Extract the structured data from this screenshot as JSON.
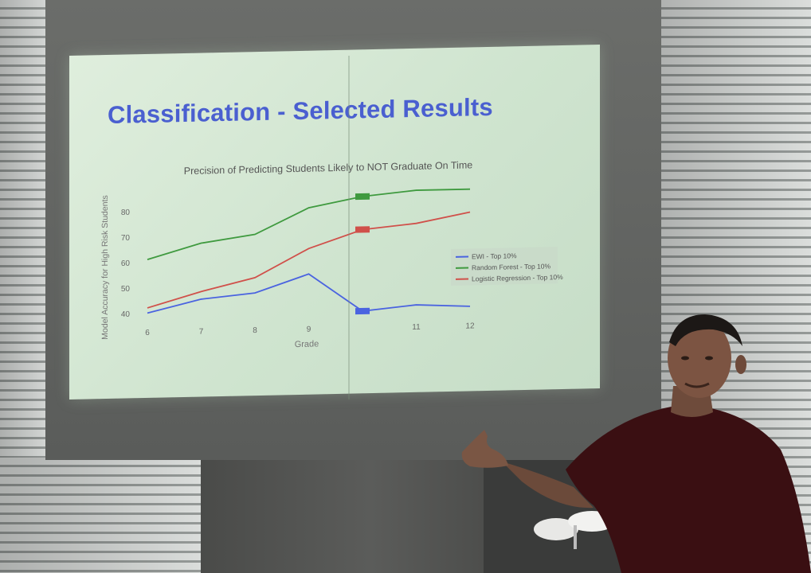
{
  "slide": {
    "title": "Classification - Selected Results"
  },
  "chart_data": {
    "type": "line",
    "title": "Precision of Predicting Students Likely to NOT Graduate On Time",
    "xlabel": "Grade",
    "ylabel": "Model Accuracy for High Risk Students",
    "x": [
      6,
      7,
      8,
      9,
      10,
      11,
      12
    ],
    "x_ticks": [
      "6",
      "7",
      "8",
      "9",
      "",
      "11",
      "12"
    ],
    "y_ticks": [
      "40",
      "50",
      "60",
      "70",
      "80"
    ],
    "ylim": [
      37,
      87
    ],
    "legend_position": "right",
    "series": [
      {
        "name": "EWI - Top 10%",
        "color": "#4a63e0",
        "values": [
          40,
          45,
          47,
          54,
          39,
          41,
          40
        ]
      },
      {
        "name": "Random Forest - Top 10%",
        "color": "#3f9a3f",
        "values": [
          61,
          67,
          70,
          80,
          84,
          86,
          86
        ]
      },
      {
        "name": "Logistic Regression - Top 10%",
        "color": "#d0504a",
        "values": [
          42,
          48,
          53,
          64,
          71,
          73,
          77
        ]
      }
    ]
  },
  "colors": {
    "slide_title": "#4a5fd0",
    "shirt": "#3a0f12"
  }
}
